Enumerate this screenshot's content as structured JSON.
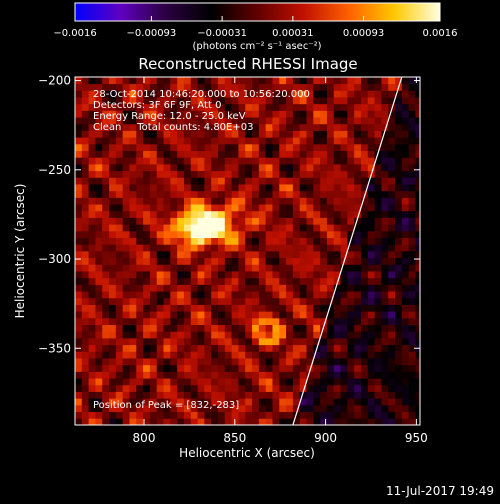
{
  "chart_data": {
    "type": "heatmap",
    "title": "Reconstructed RHESSI Image",
    "xlabel": "Heliocentric X (arcsec)",
    "ylabel": "Heliocentric Y (arcsec)",
    "xlim": [
      762,
      952
    ],
    "ylim": [
      -393,
      -198
    ],
    "x_ticks": [
      800,
      850,
      900,
      950
    ],
    "x_tick_labels": [
      "800",
      "850",
      "900",
      "950"
    ],
    "y_ticks": [
      -200,
      -250,
      -300,
      -350
    ],
    "y_tick_labels": [
      "−200",
      "−250",
      "−300",
      "−350"
    ],
    "grid": false,
    "colorbar": {
      "range": [
        -0.0016,
        0.0016
      ],
      "ticks": [
        -0.0016,
        -0.00093,
        -0.00031,
        0.00031,
        0.00093,
        0.0016
      ],
      "tick_labels": [
        "−0.0016",
        "−0.00093",
        "−0.00031",
        "0.00031",
        "0.00093",
        "0.0016"
      ],
      "label": "(photons cm⁻² s⁻¹ asec⁻²)",
      "colors": [
        "#0000ff",
        "#6000c0",
        "#2a0040",
        "#000000",
        "#600000",
        "#c01000",
        "#ff6000",
        "#ffc800",
        "#ffffe0"
      ]
    },
    "annotations": [
      "28-Oct-2014 10:46:20.000 to 10:56:20.000",
      "Detectors: 3F 6F 9F, Att 0",
      "Energy Range: 12.0 - 25.0 keV",
      "Clean     Total counts: 4.80E+03"
    ],
    "peak_label": "Position of Peak = [832,-283]",
    "peak": {
      "x": 832,
      "y": -283
    },
    "limb_line": [
      {
        "x": 882,
        "y": -393
      },
      {
        "x": 942,
        "y": -198
      }
    ],
    "secondary_source": {
      "x": 868,
      "y": -340
    }
  },
  "footer": {
    "timestamp": "11-Jul-2017 19:49"
  }
}
